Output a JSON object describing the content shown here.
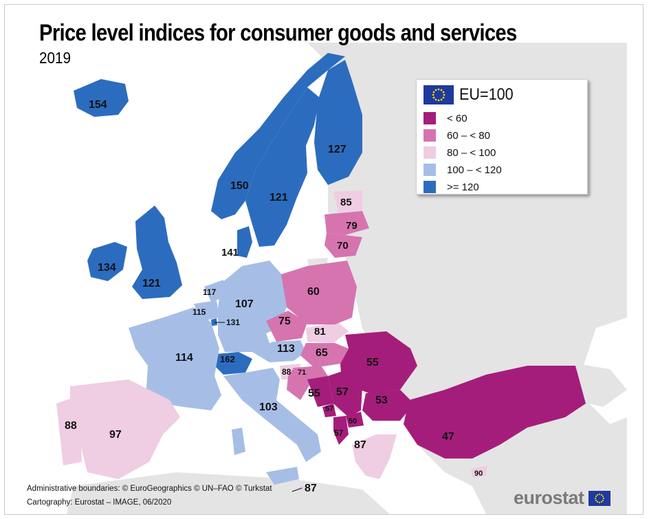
{
  "title": "Price level indices for consumer goods and services",
  "subtitle": "2019",
  "legend": {
    "header": "EU=100",
    "classes": [
      {
        "label": "< 60",
        "color": "#a51d7b"
      },
      {
        "label": "60 – < 80",
        "color": "#d674b0"
      },
      {
        "label": "80 – < 100",
        "color": "#efcde2"
      },
      {
        "label": "100 – < 120",
        "color": "#a6bee6"
      },
      {
        "label": ">= 120",
        "color": "#2c6cbf"
      }
    ]
  },
  "countries": [
    {
      "name": "Iceland",
      "value": "154"
    },
    {
      "name": "Norway",
      "value": "150"
    },
    {
      "name": "Sweden",
      "value": "121"
    },
    {
      "name": "Finland",
      "value": "127"
    },
    {
      "name": "Estonia",
      "value": "85"
    },
    {
      "name": "Latvia",
      "value": "79"
    },
    {
      "name": "Lithuania",
      "value": "70"
    },
    {
      "name": "Denmark",
      "value": "141"
    },
    {
      "name": "Ireland",
      "value": "134"
    },
    {
      "name": "United Kingdom",
      "value": "121"
    },
    {
      "name": "Netherlands",
      "value": "117"
    },
    {
      "name": "Belgium",
      "value": "115"
    },
    {
      "name": "Luxembourg",
      "value": "131"
    },
    {
      "name": "Germany",
      "value": "107"
    },
    {
      "name": "Poland",
      "value": "60"
    },
    {
      "name": "Czechia",
      "value": "75"
    },
    {
      "name": "Slovakia",
      "value": "81"
    },
    {
      "name": "Austria",
      "value": "113"
    },
    {
      "name": "Hungary",
      "value": "65"
    },
    {
      "name": "Switzerland",
      "value": "162"
    },
    {
      "name": "France",
      "value": "114"
    },
    {
      "name": "Slovenia",
      "value": "88"
    },
    {
      "name": "Croatia",
      "value": "71"
    },
    {
      "name": "Bosnia and Herzegovina",
      "value": "55"
    },
    {
      "name": "Serbia",
      "value": "57"
    },
    {
      "name": "Romania",
      "value": "55"
    },
    {
      "name": "Bulgaria",
      "value": "53"
    },
    {
      "name": "Montenegro",
      "value": "57"
    },
    {
      "name": "North Macedonia",
      "value": "50"
    },
    {
      "name": "Albania",
      "value": "57"
    },
    {
      "name": "Greece",
      "value": "87"
    },
    {
      "name": "Turkey",
      "value": "47"
    },
    {
      "name": "Cyprus",
      "value": "90"
    },
    {
      "name": "Italy",
      "value": "103"
    },
    {
      "name": "Malta",
      "value": "87"
    },
    {
      "name": "Spain",
      "value": "97"
    },
    {
      "name": "Portugal",
      "value": "88"
    }
  ],
  "credits": {
    "line1": "Administrative boundaries: © EuroGeographics © UN–FAO © Turkstat",
    "line2": "Cartography: Eurostat – IMAGE, 06/2020"
  },
  "logo": "eurostat",
  "colors": {
    "lt60": "#a51d7b",
    "60to80": "#d674b0",
    "80to100": "#efcde2",
    "100to120": "#a6bee6",
    "ge120": "#2c6cbf",
    "non_eu": "#e4e4e4"
  }
}
